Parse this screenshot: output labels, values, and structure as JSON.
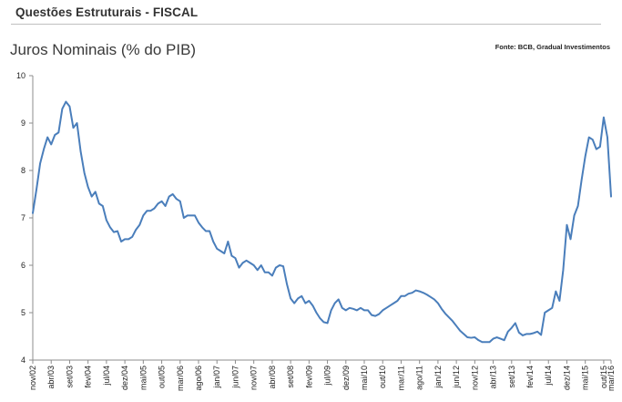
{
  "header": {
    "title": "Questões Estruturais - FISCAL"
  },
  "chart_data": {
    "type": "line",
    "title": "Juros Nominais (% do PIB)",
    "source": "Fonte: BCB, Gradual Investimentos",
    "xlabel": "",
    "ylabel": "",
    "ylim": [
      4,
      10
    ],
    "yticks": [
      "4",
      "5",
      "6",
      "7",
      "8",
      "9",
      "10"
    ],
    "grid": false,
    "legend": "none",
    "line_color": "#4a7ebb",
    "x_tick_labels": [
      "nov/02",
      "abr/03",
      "set/03",
      "fev/04",
      "jul/04",
      "dez/04",
      "mai/05",
      "out/05",
      "mar/06",
      "ago/06",
      "jan/07",
      "jun/07",
      "nov/07",
      "abr/08",
      "set/08",
      "fev/09",
      "jul/09",
      "dez/09",
      "mai/10",
      "out/10",
      "mar/11",
      "ago/11",
      "jan/12",
      "jun/12",
      "nov/12",
      "abr/13",
      "set/13",
      "fev/14",
      "jul/14",
      "dez/14",
      "mai/15",
      "out/15",
      "mar/16"
    ],
    "x_start": "nov/02",
    "x_step": "month",
    "series": [
      {
        "values": [
          7.1,
          7.6,
          8.15,
          8.45,
          8.7,
          8.55,
          8.75,
          8.8,
          9.3,
          9.45,
          9.35,
          8.9,
          9.0,
          8.4,
          7.95,
          7.65,
          7.45,
          7.55,
          7.3,
          7.25,
          6.95,
          6.8,
          6.7,
          6.72,
          6.5,
          6.55,
          6.55,
          6.6,
          6.75,
          6.85,
          7.05,
          7.15,
          7.15,
          7.2,
          7.3,
          7.35,
          7.25,
          7.45,
          7.5,
          7.4,
          7.35,
          7.0,
          7.05,
          7.05,
          7.05,
          6.9,
          6.8,
          6.72,
          6.72,
          6.5,
          6.35,
          6.3,
          6.25,
          6.5,
          6.2,
          6.15,
          5.95,
          6.05,
          6.1,
          6.05,
          6.0,
          5.9,
          6.0,
          5.85,
          5.85,
          5.78,
          5.95,
          6.0,
          5.98,
          5.6,
          5.3,
          5.2,
          5.3,
          5.35,
          5.2,
          5.25,
          5.15,
          5.0,
          4.88,
          4.8,
          4.78,
          5.05,
          5.2,
          5.28,
          5.1,
          5.05,
          5.1,
          5.08,
          5.05,
          5.1,
          5.05,
          5.05,
          4.95,
          4.93,
          4.97,
          5.05,
          5.1,
          5.15,
          5.2,
          5.25,
          5.35,
          5.35,
          5.4,
          5.42,
          5.47,
          5.45,
          5.42,
          5.38,
          5.33,
          5.28,
          5.2,
          5.08,
          4.98,
          4.9,
          4.82,
          4.72,
          4.62,
          4.55,
          4.48,
          4.47,
          4.48,
          4.42,
          4.38,
          4.38,
          4.38,
          4.45,
          4.48,
          4.45,
          4.42,
          4.6,
          4.68,
          4.78,
          4.58,
          4.52,
          4.55,
          4.55,
          4.57,
          4.6,
          4.53,
          5.0,
          5.05,
          5.1,
          5.45,
          5.25,
          5.9,
          6.85,
          6.55,
          7.05,
          7.25,
          7.8,
          8.3,
          8.7,
          8.65,
          8.45,
          8.5,
          9.12,
          8.7,
          7.45
        ]
      }
    ]
  }
}
